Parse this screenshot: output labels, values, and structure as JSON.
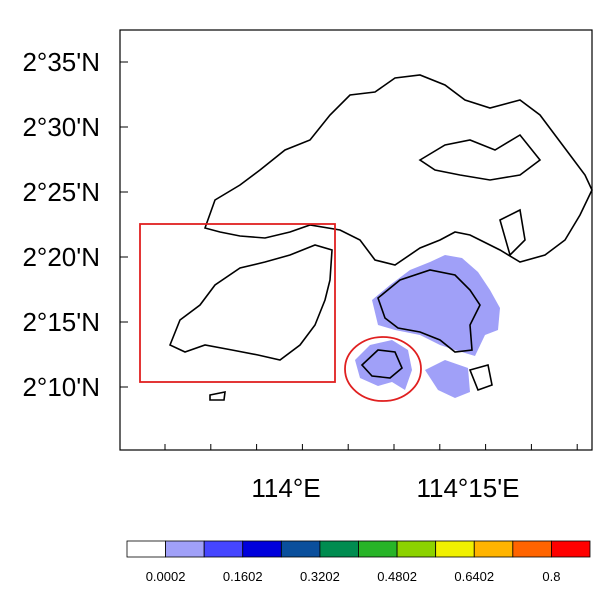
{
  "map": {
    "lat_labels": [
      "2°35'N",
      "2°30'N",
      "2°25'N",
      "2°20'N",
      "2°15'N",
      "2°10'N"
    ],
    "lon_labels": [
      "114°E",
      "114°15'E"
    ]
  },
  "colorbar": {
    "colors": [
      "#ffffff",
      "#a0a0f8",
      "#4646ff",
      "#0000dc",
      "#0a4f9c",
      "#008c50",
      "#28b428",
      "#8cd200",
      "#f0f000",
      "#ffb400",
      "#ff6400",
      "#ff0000"
    ],
    "labels": [
      "0.0002",
      "0.1602",
      "0.3202",
      "0.4802",
      "0.6402",
      "0.8"
    ]
  }
}
